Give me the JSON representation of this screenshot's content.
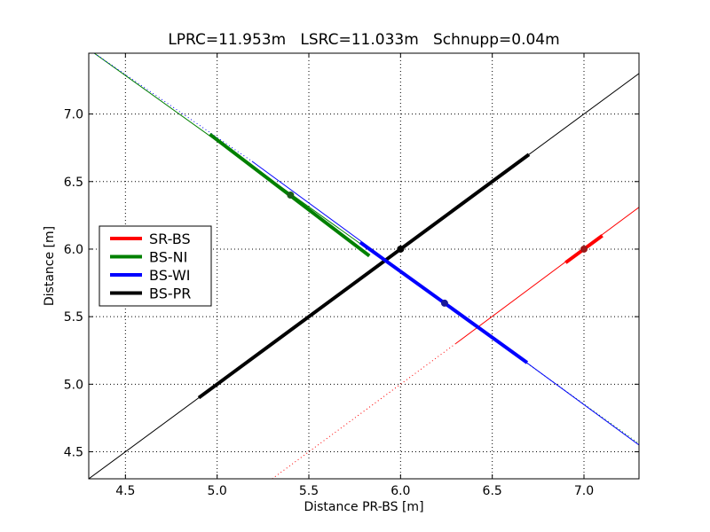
{
  "chart_data": {
    "type": "line",
    "title": "LPRC=11.953m   LSRC=11.033m   Schnupp=0.04m",
    "xlabel": "Distance PR-BS [m]",
    "ylabel": "Distance [m]",
    "xlim": [
      4.3,
      7.3
    ],
    "ylim": [
      4.3,
      7.45
    ],
    "xticks": [
      "4.5",
      "5.0",
      "5.5",
      "6.0",
      "6.5",
      "7.0"
    ],
    "yticks": [
      "4.5",
      "5.0",
      "5.5",
      "6.0",
      "6.5",
      "7.0"
    ],
    "grid": true,
    "legend_position": "center-left",
    "legend": [
      {
        "name": "SR-BS",
        "color": "#ff0000"
      },
      {
        "name": "BS-NI",
        "color": "#008000"
      },
      {
        "name": "BS-WI",
        "color": "#0000ff"
      },
      {
        "name": "BS-PR",
        "color": "#000000"
      }
    ],
    "series": [
      {
        "name": "BS-PR",
        "color": "#000000",
        "thin_line": [
          [
            4.3,
            4.3
          ],
          [
            7.3,
            7.3
          ]
        ],
        "thick_segment": [
          [
            4.9,
            4.9
          ],
          [
            6.7,
            6.7
          ]
        ],
        "marker": [
          6.0,
          6.0
        ]
      },
      {
        "name": "SR-BS",
        "color": "#ff0000",
        "dotted_line": [
          [
            5.3,
            4.3
          ],
          [
            6.3,
            5.3
          ]
        ],
        "thin_line": [
          [
            6.3,
            5.3
          ],
          [
            7.3,
            6.31
          ]
        ],
        "thick_segment": [
          [
            6.9,
            5.9
          ],
          [
            7.1,
            6.1
          ]
        ],
        "marker": [
          7.0,
          6.0
        ]
      },
      {
        "name": "BS-NI",
        "color": "#008000",
        "thin_line": [
          [
            4.33,
            7.45
          ],
          [
            6.47,
            5.37
          ]
        ],
        "dotted_line": [
          [
            6.47,
            5.37
          ],
          [
            7.3,
            4.56
          ]
        ],
        "thick_segment": [
          [
            4.96,
            6.85
          ],
          [
            5.83,
            5.95
          ]
        ],
        "marker": [
          5.4,
          6.4
        ]
      },
      {
        "name": "BS-WI",
        "color": "#0000ff",
        "dotted_line": [
          [
            4.33,
            7.45
          ],
          [
            5.19,
            6.65
          ]
        ],
        "thin_line": [
          [
            5.19,
            6.65
          ],
          [
            7.3,
            4.55
          ]
        ],
        "thick_segment": [
          [
            5.78,
            6.05
          ],
          [
            6.69,
            5.16
          ]
        ],
        "marker": [
          6.24,
          5.6
        ]
      }
    ]
  }
}
